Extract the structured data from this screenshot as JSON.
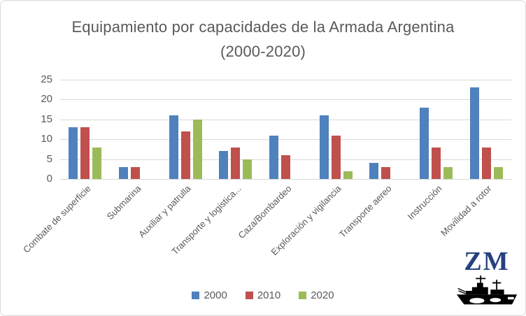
{
  "chart_data": {
    "type": "bar",
    "title": "Equipamiento por capacidades de la Armada Argentina (2000-2020)",
    "categories": [
      "Combate de superficie",
      "Submarina",
      "Auxiliar y patrulla",
      "Transporte y logistica...",
      "Caza/Bombardeo",
      "Exploración y vigilancia",
      "Transporte aereo",
      "Instrucción",
      "Movilidad a rotor"
    ],
    "series": [
      {
        "name": "2000",
        "color": "#4F81BD",
        "values": [
          13,
          3,
          16,
          7,
          11,
          16,
          4,
          18,
          23
        ]
      },
      {
        "name": "2010",
        "color": "#C0504D",
        "values": [
          13,
          3,
          12,
          8,
          6,
          11,
          3,
          8,
          8
        ]
      },
      {
        "name": "2020",
        "color": "#9BBB59",
        "values": [
          8,
          0,
          15,
          5,
          0,
          2,
          0,
          3,
          3
        ]
      }
    ],
    "xlabel": "",
    "ylabel": "",
    "ylim": [
      0,
      25
    ],
    "yticks": [
      0,
      5,
      10,
      15,
      20,
      25
    ],
    "grid": true,
    "legend_position": "bottom"
  },
  "colors": {
    "title_text": "#595959",
    "axis_text": "#595959",
    "gridline": "#D9D9D9",
    "frame_border": "#D9D9D9",
    "logo_text": "#26417F",
    "logo_ship": "#000000"
  },
  "logo": {
    "text": "ZM"
  }
}
